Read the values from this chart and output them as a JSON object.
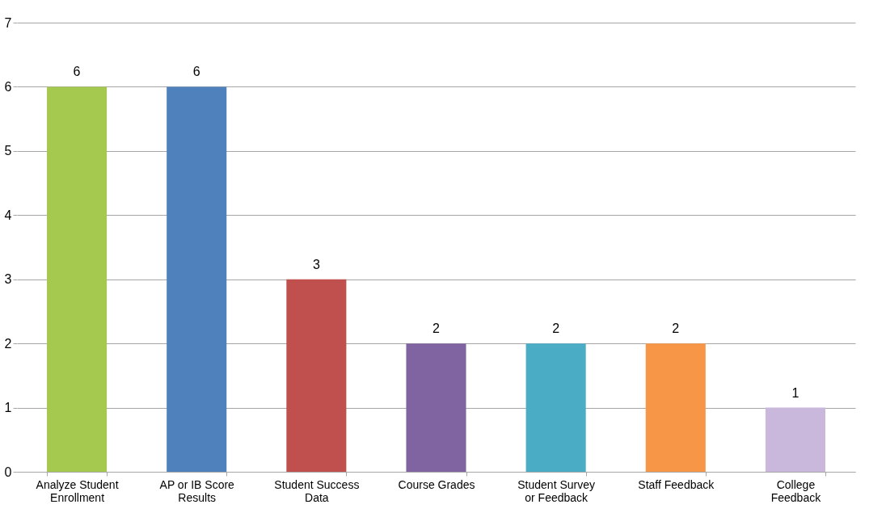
{
  "chart_data": {
    "type": "bar",
    "categories": [
      "Analyze Student Enrollment",
      "AP or IB Score Results",
      "Student Success Data",
      "Course Grades",
      "Student Survey or Feedback",
      "Staff Feedback",
      "College Feedback"
    ],
    "values": [
      6,
      6,
      3,
      2,
      2,
      2,
      1
    ],
    "colors": [
      "#a5c84f",
      "#4f81bd",
      "#c0504d",
      "#8064a2",
      "#4bacc6",
      "#f79646",
      "#c9b8dc"
    ],
    "ylim": [
      0,
      7
    ],
    "yticks": [
      0,
      1,
      2,
      3,
      4,
      5,
      6,
      7
    ],
    "grid": "y",
    "data_labels": true
  }
}
